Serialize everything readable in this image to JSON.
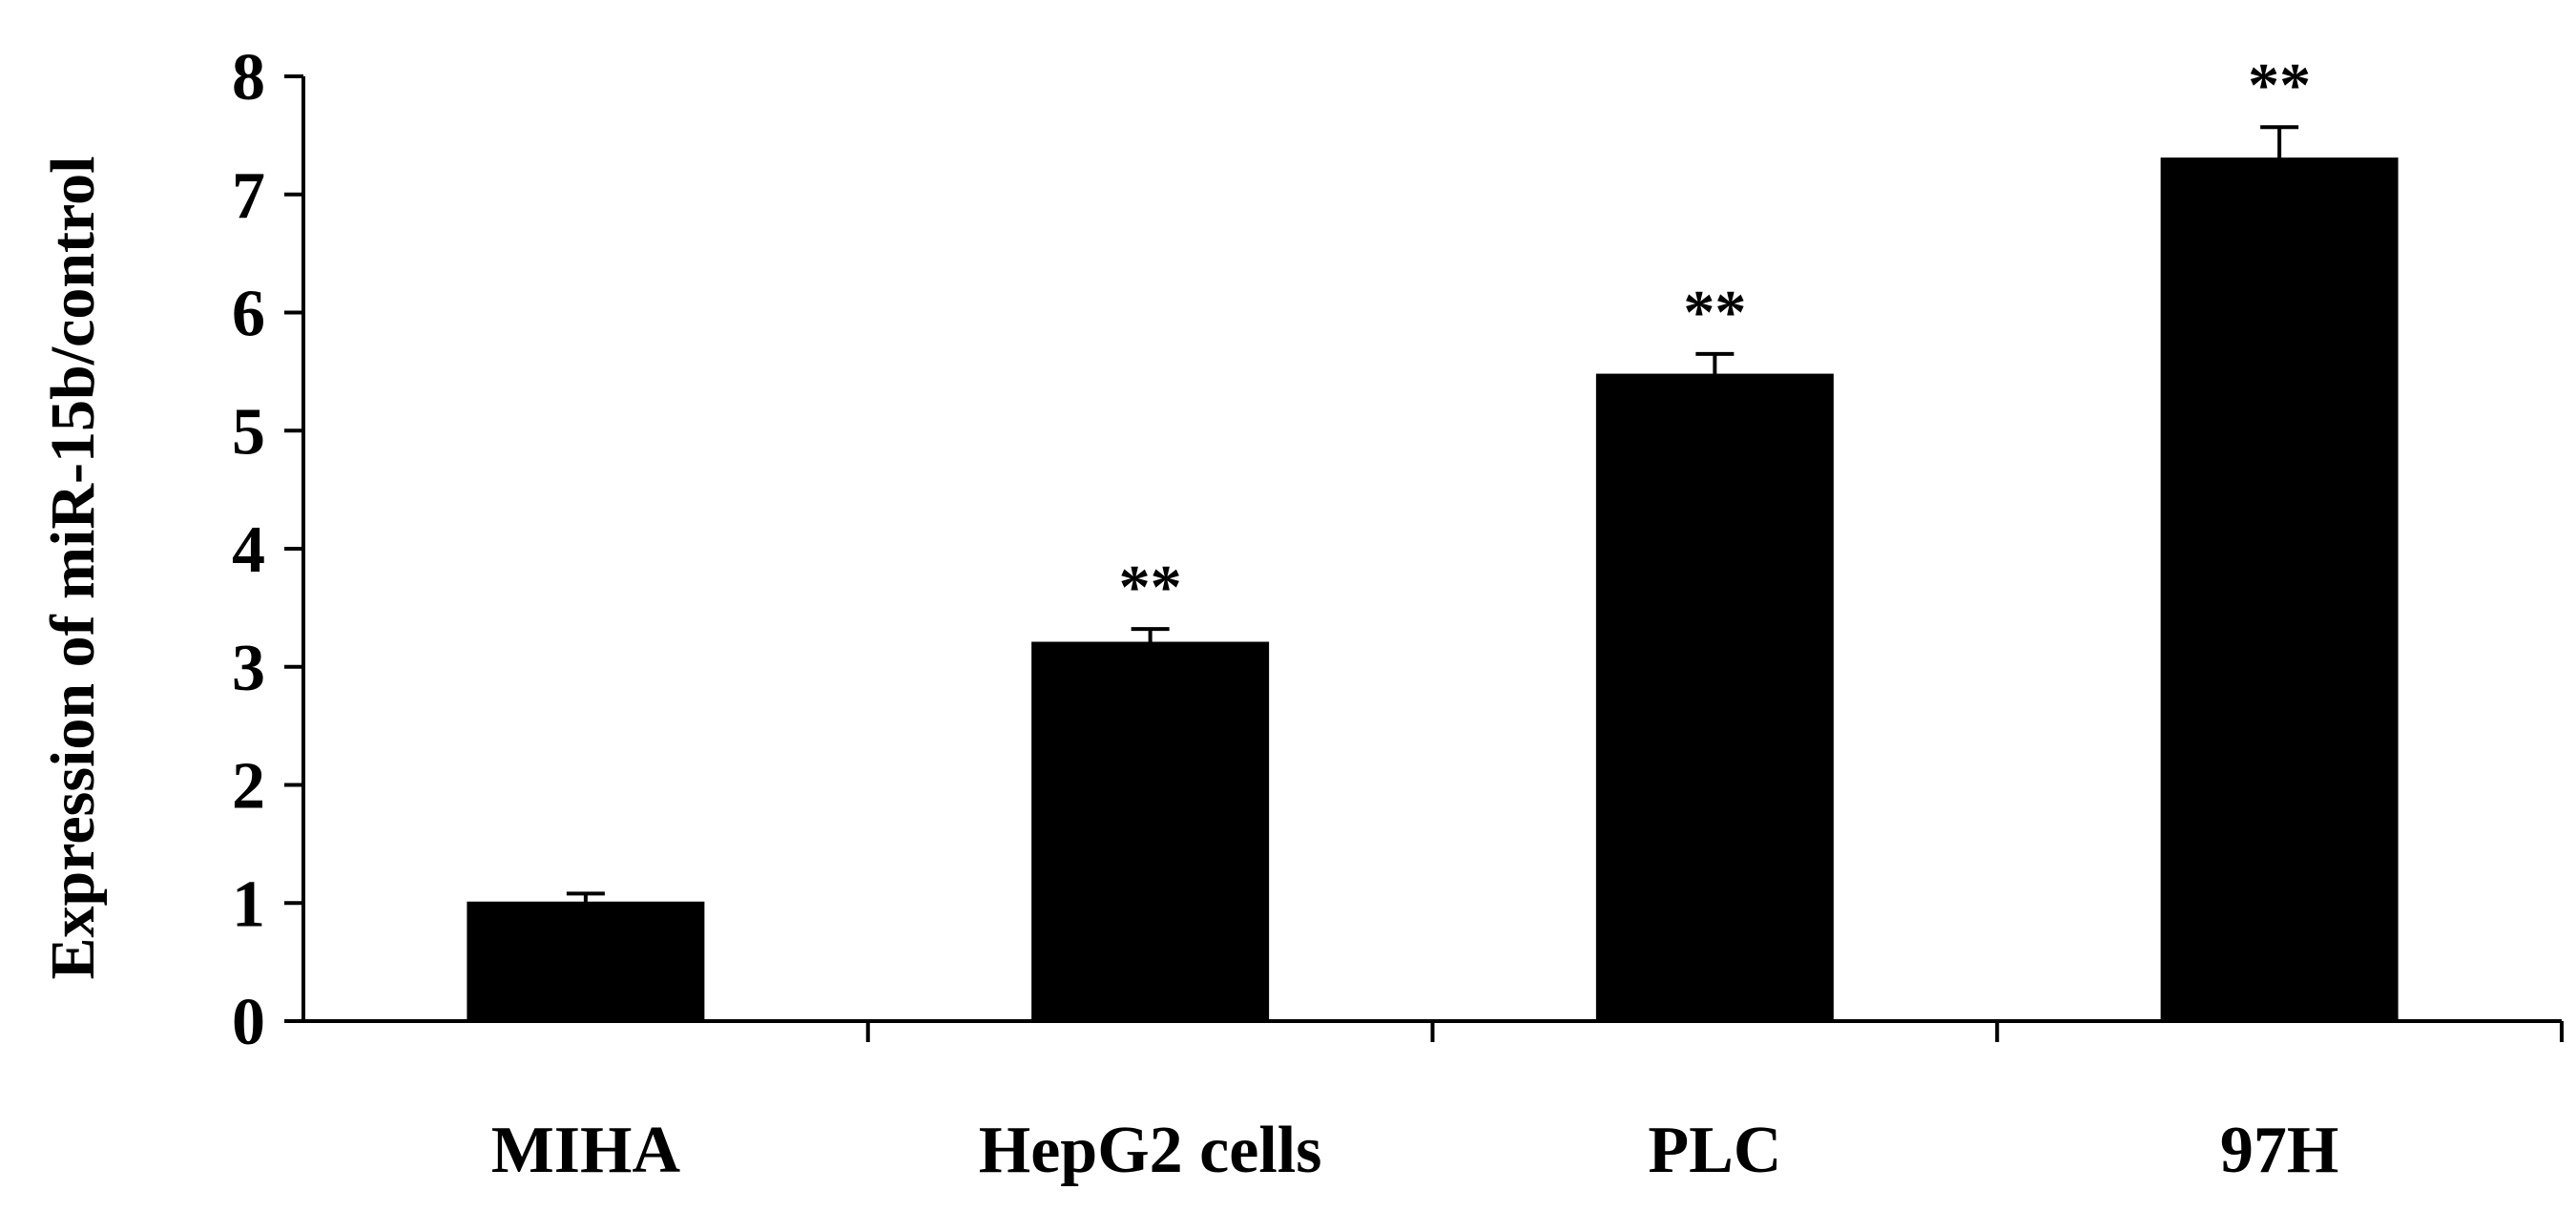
{
  "chart_data": {
    "type": "bar",
    "title": "",
    "xlabel": "",
    "ylabel": "Expression of miR-15b/control",
    "categories": [
      "MIHA",
      "HepG2 cells",
      "PLC",
      "97H"
    ],
    "values": [
      1.0,
      3.2,
      5.47,
      7.3
    ],
    "errors": [
      0.08,
      0.12,
      0.18,
      0.27
    ],
    "annotations": [
      "",
      "**",
      "**",
      "**"
    ],
    "ylim": [
      0,
      8
    ],
    "yticks": [
      "0",
      "1",
      "2",
      "3",
      "4",
      "5",
      "6",
      "7",
      "8"
    ],
    "grid": false,
    "legend": "none",
    "bar_color": "#000000"
  }
}
